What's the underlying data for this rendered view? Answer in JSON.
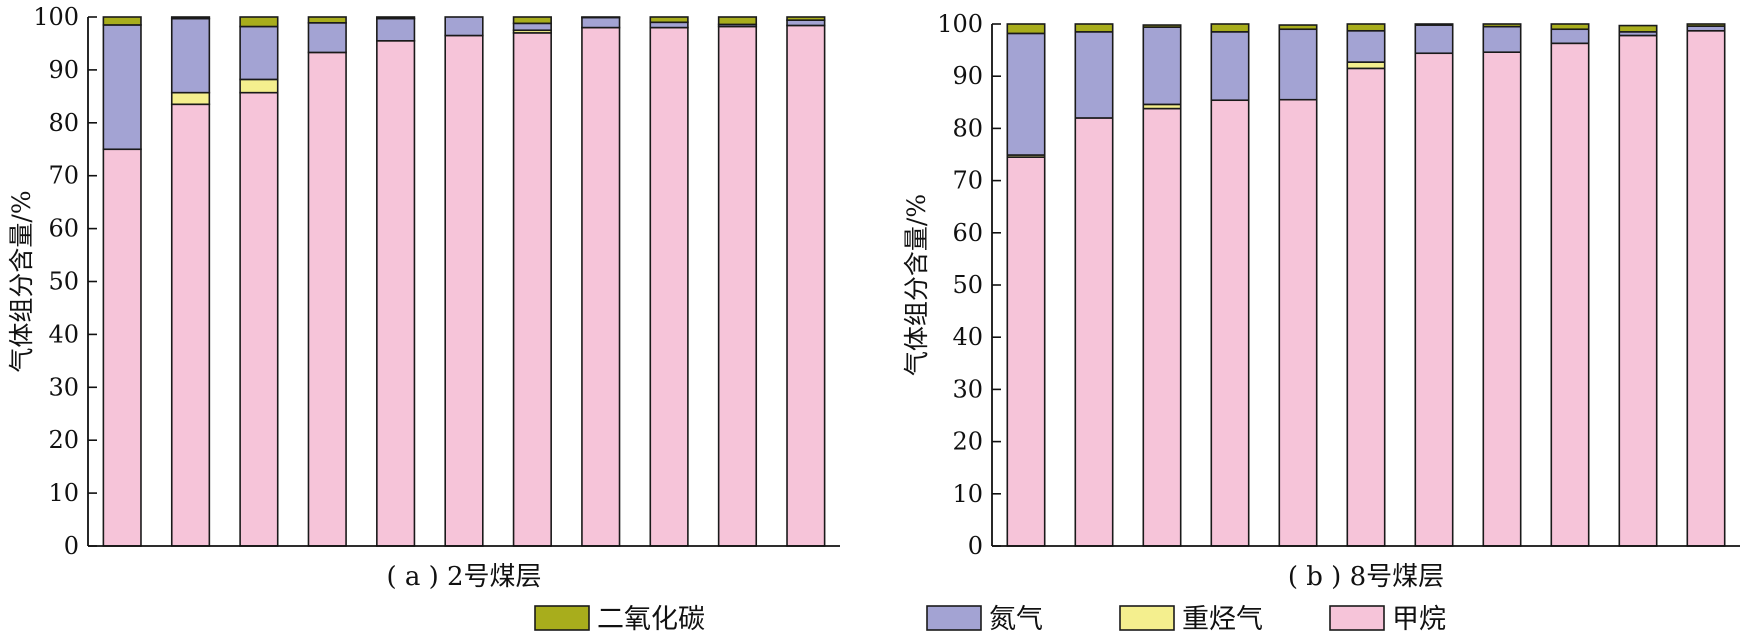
{
  "legend": [
    {
      "key": "co2",
      "label": "二氧化碳",
      "color": "#a8ad1c"
    },
    {
      "key": "n2",
      "label": "氮气",
      "color": "#a3a3d3"
    },
    {
      "key": "heavy",
      "label": "重烃气",
      "color": "#f4ef8e"
    },
    {
      "key": "ch4",
      "label": "甲烷",
      "color": "#f6c4d9"
    }
  ],
  "chart_data": [
    {
      "type": "bar",
      "stacked": true,
      "caption": "( a ) 2号煤层",
      "ylabel": "气体组分含量/%",
      "ylim": [
        0,
        100
      ],
      "yticks": [
        0,
        10,
        20,
        30,
        40,
        50,
        60,
        70,
        80,
        90,
        100
      ],
      "categories": [
        "",
        "",
        "",
        "",
        "",
        "",
        "",
        "",
        "",
        "",
        ""
      ],
      "series": [
        {
          "name": "甲烷",
          "key": "ch4",
          "values": [
            75.0,
            83.5,
            85.7,
            93.3,
            95.5,
            96.5,
            97.0,
            98.0,
            98.0,
            98.2,
            98.4
          ]
        },
        {
          "name": "重烃气",
          "key": "heavy",
          "values": [
            0.0,
            2.2,
            2.5,
            0.0,
            0.0,
            0.0,
            0.5,
            0.0,
            0.0,
            0.0,
            0.0
          ]
        },
        {
          "name": "氮气",
          "key": "n2",
          "values": [
            23.5,
            14.0,
            10.0,
            5.6,
            4.2,
            3.5,
            1.3,
            1.9,
            1.0,
            0.4,
            1.0
          ]
        },
        {
          "name": "二氧化碳",
          "key": "co2",
          "values": [
            1.5,
            0.3,
            1.8,
            1.1,
            0.3,
            0.0,
            1.2,
            0.1,
            1.0,
            1.4,
            0.6
          ]
        }
      ]
    },
    {
      "type": "bar",
      "stacked": true,
      "caption": "( b ) 8号煤层",
      "ylabel": "气体组分含量/%",
      "ylim": [
        0,
        100
      ],
      "yticks": [
        0,
        10,
        20,
        30,
        40,
        50,
        60,
        70,
        80,
        90,
        100
      ],
      "categories": [
        "",
        "",
        "",
        "",
        "",
        "",
        "",
        "",
        "",
        "",
        ""
      ],
      "series": [
        {
          "name": "甲烷",
          "key": "ch4",
          "values": [
            74.5,
            82.0,
            83.8,
            85.4,
            85.5,
            91.5,
            94.4,
            94.6,
            96.3,
            97.8,
            98.7
          ]
        },
        {
          "name": "重烃气",
          "key": "heavy",
          "values": [
            0.4,
            0.0,
            0.8,
            0.0,
            0.0,
            1.2,
            0.0,
            0.0,
            0.0,
            0.0,
            0.0
          ]
        },
        {
          "name": "氮气",
          "key": "n2",
          "values": [
            23.3,
            16.5,
            14.8,
            13.1,
            13.5,
            6.0,
            5.4,
            4.9,
            2.7,
            0.7,
            0.9
          ]
        },
        {
          "name": "二氧化碳",
          "key": "co2",
          "values": [
            1.8,
            1.5,
            0.4,
            1.5,
            0.8,
            1.3,
            0.2,
            0.5,
            1.0,
            1.2,
            0.4
          ]
        }
      ]
    }
  ]
}
